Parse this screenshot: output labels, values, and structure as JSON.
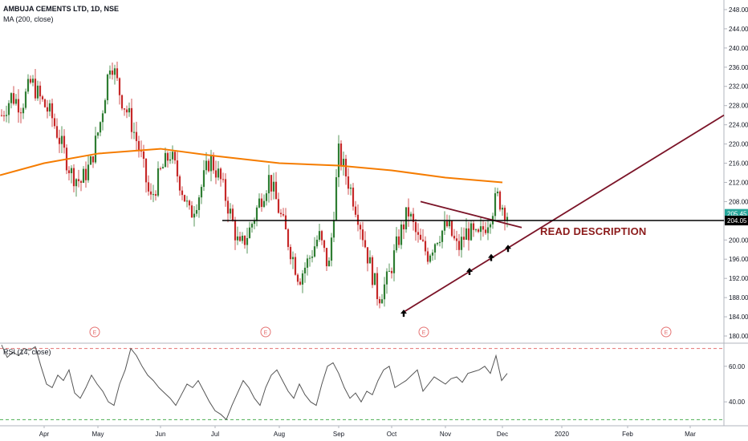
{
  "header": {
    "title": "AMBUJA CEMENTS LTD, 1D, NSE",
    "ma_label": "MA (200, close)",
    "rsi_label": "RSI (14, close)"
  },
  "annotation": {
    "text": "READ DESCRIPTION",
    "color": "#8b1a1a"
  },
  "colors": {
    "up": "#2e7d32",
    "down": "#c62828",
    "ma": "#f57c00",
    "trendline": "#7b1428",
    "support": "#000000",
    "last_price_bg": "#26a69a",
    "rsi_line": "#555555",
    "rsi_upper": "#e57373",
    "rsi_lower": "#4caf50",
    "earnings": "#e57373"
  },
  "chart_data": [
    {
      "type": "candlestick",
      "title": "AMBUJA CEMENTS LTD, 1D, NSE",
      "x_labels": [
        "Apr",
        "May",
        "Jun",
        "Jul",
        "Aug",
        "Sep",
        "Oct",
        "Nov",
        "Dec",
        "2020",
        "Feb",
        "Mar"
      ],
      "y_ticks": [
        180,
        184,
        188,
        192,
        196,
        200,
        204,
        208,
        212,
        216,
        220,
        224,
        228,
        232,
        236,
        240,
        244,
        248
      ],
      "ylim": [
        178.5,
        250
      ],
      "last_price": "205.45",
      "support_level": "204.05",
      "series": [
        {
          "name": "MA (200, close)",
          "type": "line",
          "points": [
            [
              "Mar",
              213.5
            ],
            [
              "Apr",
              216
            ],
            [
              "May",
              218
            ],
            [
              "Jun",
              219
            ],
            [
              "Jul",
              217.5
            ],
            [
              "Aug",
              216
            ],
            [
              "Sep",
              215.5
            ],
            [
              "Oct",
              214.5
            ],
            [
              "Nov",
              213
            ],
            [
              "Dec",
              212
            ]
          ]
        }
      ],
      "price_path": [
        [
          "Mar",
          226
        ],
        [
          "Mar",
          230
        ],
        [
          "Apr",
          228
        ],
        [
          "Apr",
          233
        ],
        [
          "Apr",
          229
        ],
        [
          "May",
          226
        ],
        [
          "May",
          220
        ],
        [
          "May",
          214
        ],
        [
          "May",
          212
        ],
        [
          "May",
          216
        ],
        [
          "Jun",
          225
        ],
        [
          "Jun",
          238
        ],
        [
          "Jun",
          230
        ],
        [
          "Jun",
          225
        ],
        [
          "Jul",
          218
        ],
        [
          "Jul",
          208
        ],
        [
          "Jul",
          214
        ],
        [
          "Jul",
          218
        ],
        [
          "Jul",
          212
        ],
        [
          "Jul",
          205
        ],
        [
          "Jul",
          210
        ],
        [
          "Jul",
          217
        ],
        [
          "Aug",
          213
        ],
        [
          "Aug",
          206
        ],
        [
          "Aug",
          198
        ],
        [
          "Aug",
          202
        ],
        [
          "Aug",
          208
        ],
        [
          "Aug",
          213
        ],
        [
          "Aug",
          206
        ],
        [
          "Aug",
          199
        ],
        [
          "Sep",
          192
        ],
        [
          "Sep",
          196
        ],
        [
          "Sep",
          201
        ],
        [
          "Sep",
          194
        ],
        [
          "Sep",
          218
        ],
        [
          "Sep",
          212
        ],
        [
          "Oct",
          205
        ],
        [
          "Oct",
          196
        ],
        [
          "Oct",
          188
        ],
        [
          "Oct",
          192
        ],
        [
          "Oct",
          200
        ],
        [
          "Oct",
          206
        ],
        [
          "Oct",
          200
        ],
        [
          "Nov",
          197
        ],
        [
          "Nov",
          201
        ],
        [
          "Nov",
          203
        ],
        [
          "Nov",
          198
        ],
        [
          "Nov",
          202
        ],
        [
          "Dec",
          200
        ],
        [
          "Dec",
          204
        ],
        [
          "Dec",
          209
        ],
        [
          "Dec",
          205.45
        ]
      ],
      "trendlines": [
        {
          "name": "support",
          "from": [
            "Oct",
            185
          ],
          "to": [
            "Mar",
            231
          ]
        },
        {
          "name": "resistance",
          "from": [
            "Oct",
            208
          ],
          "to": [
            "Dec",
            203
          ]
        },
        {
          "name": "horizontal",
          "from": [
            "Jul",
            204.05
          ],
          "to": [
            "Mar",
            204.05
          ]
        }
      ],
      "marker_count": 4
    },
    {
      "type": "line",
      "title": "RSI (14, close)",
      "x_labels": [
        "Apr",
        "May",
        "Jun",
        "Jul",
        "Aug",
        "Sep",
        "Oct",
        "Nov",
        "Dec",
        "2020",
        "Feb",
        "Mar"
      ],
      "y_ticks": [
        40.0,
        60.0
      ],
      "ylim": [
        27,
        73
      ],
      "bands": [
        70,
        30
      ],
      "values": [
        72,
        65,
        68,
        66,
        70,
        69,
        71,
        60,
        50,
        48,
        55,
        52,
        58,
        45,
        42,
        48,
        55,
        50,
        46,
        40,
        38,
        50,
        58,
        70,
        66,
        60,
        55,
        52,
        48,
        45,
        42,
        38,
        44,
        50,
        48,
        52,
        46,
        40,
        35,
        33,
        30,
        38,
        45,
        52,
        48,
        42,
        38,
        48,
        55,
        58,
        52,
        46,
        42,
        50,
        44,
        40,
        38,
        50,
        60,
        62,
        56,
        48,
        42,
        45,
        40,
        46,
        44,
        52,
        58,
        60,
        48,
        50,
        52,
        55,
        58,
        46,
        50,
        54,
        52,
        50,
        53,
        54,
        51,
        56,
        57,
        58,
        60,
        56,
        66,
        52,
        56
      ]
    }
  ]
}
